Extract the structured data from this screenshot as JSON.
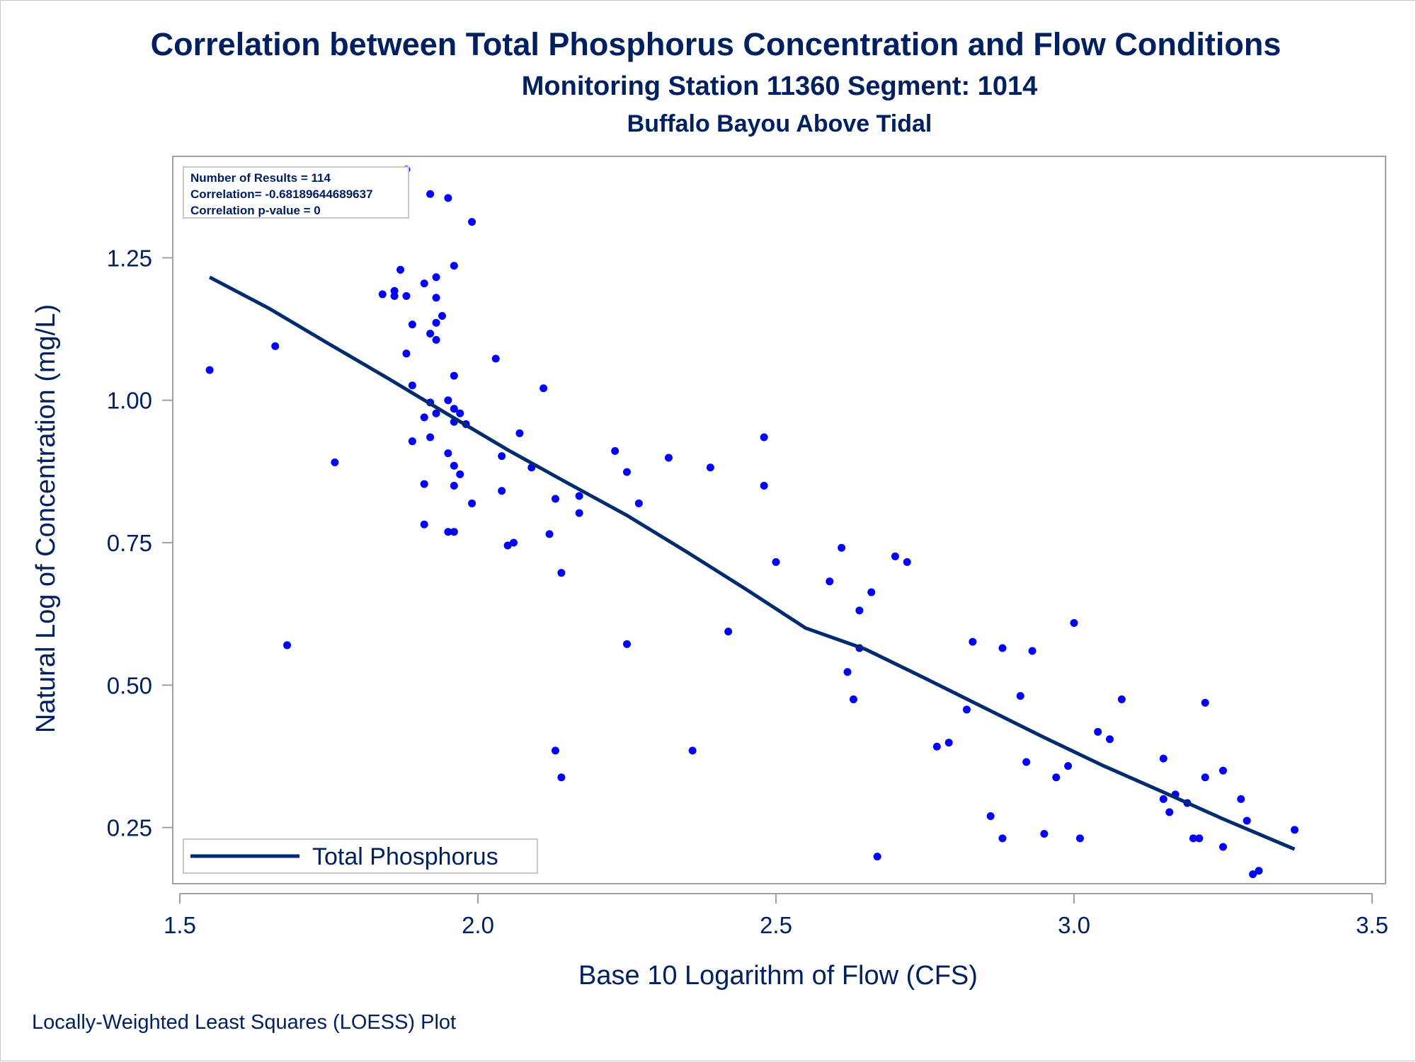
{
  "titles": {
    "title": "Correlation between Total Phosphorus Concentration and Flow Conditions",
    "subtitle": "Monitoring Station 11360 Segment: 1014",
    "subtitle2": "Buffalo Bayou Above Tidal"
  },
  "footnote": "Locally-Weighted Least Squares (LOESS) Plot",
  "stats": [
    "Number of Results = 114",
    "Correlation= -0.68189644689637",
    "Correlation p-value = 0"
  ],
  "colors": {
    "text": "#002060",
    "points": "#0000ff",
    "line": "#002b6e",
    "frame": "#a0a0a0"
  },
  "chart_data": {
    "type": "scatter",
    "xlabel": "Base 10 Logarithm of Flow (CFS)",
    "ylabel": "Natural Log of Concentration (mg/L)",
    "xlim": [
      1.5,
      3.5
    ],
    "ylim": [
      0.16,
      1.42
    ],
    "xticks": [
      1.5,
      2.0,
      2.5,
      3.0,
      3.5
    ],
    "xtick_labels": [
      "1.5",
      "2.0",
      "2.5",
      "3.0",
      "3.5"
    ],
    "yticks": [
      0.25,
      0.5,
      0.75,
      1.0,
      1.25
    ],
    "ytick_labels": [
      "0.25",
      "0.50",
      "0.75",
      "1.00",
      "1.25"
    ],
    "grid": false,
    "legend": {
      "position": "bottom-left",
      "entries": [
        "Total Phosphorus"
      ]
    },
    "points": [
      [
        1.55,
        1.053
      ],
      [
        1.66,
        1.095
      ],
      [
        1.68,
        0.57
      ],
      [
        1.76,
        0.891
      ],
      [
        1.84,
        1.186
      ],
      [
        1.86,
        1.183
      ],
      [
        1.87,
        1.229
      ],
      [
        1.86,
        1.192
      ],
      [
        1.88,
        1.183
      ],
      [
        1.88,
        1.082
      ],
      [
        1.89,
        1.133
      ],
      [
        1.89,
        1.026
      ],
      [
        1.89,
        0.928
      ],
      [
        1.88,
        1.405
      ],
      [
        1.92,
        1.362
      ],
      [
        1.91,
        1.205
      ],
      [
        1.93,
        1.216
      ],
      [
        1.93,
        1.18
      ],
      [
        1.94,
        1.148
      ],
      [
        1.93,
        1.136
      ],
      [
        1.92,
        1.117
      ],
      [
        1.93,
        1.106
      ],
      [
        1.95,
        1.355
      ],
      [
        1.96,
        1.236
      ],
      [
        1.99,
        1.313
      ],
      [
        1.92,
        0.996
      ],
      [
        1.95,
        1.0
      ],
      [
        1.91,
        0.97
      ],
      [
        1.93,
        0.977
      ],
      [
        1.92,
        0.935
      ],
      [
        1.96,
        0.985
      ],
      [
        1.97,
        0.977
      ],
      [
        1.96,
        0.962
      ],
      [
        1.98,
        0.958
      ],
      [
        1.96,
        1.043
      ],
      [
        1.95,
        0.907
      ],
      [
        1.96,
        0.885
      ],
      [
        1.97,
        0.87
      ],
      [
        1.96,
        0.85
      ],
      [
        1.91,
        0.853
      ],
      [
        1.99,
        0.819
      ],
      [
        1.91,
        0.782
      ],
      [
        1.95,
        0.769
      ],
      [
        1.96,
        0.769
      ],
      [
        2.03,
        1.073
      ],
      [
        2.04,
        0.902
      ],
      [
        2.04,
        0.841
      ],
      [
        2.07,
        0.942
      ],
      [
        2.09,
        0.882
      ],
      [
        2.05,
        0.745
      ],
      [
        2.06,
        0.75
      ],
      [
        2.11,
        1.021
      ],
      [
        2.12,
        0.765
      ],
      [
        2.13,
        0.827
      ],
      [
        2.14,
        0.697
      ],
      [
        2.17,
        0.832
      ],
      [
        2.17,
        0.802
      ],
      [
        2.13,
        0.385
      ],
      [
        2.14,
        0.338
      ],
      [
        2.23,
        0.911
      ],
      [
        2.25,
        0.874
      ],
      [
        2.27,
        0.819
      ],
      [
        2.25,
        0.572
      ],
      [
        2.32,
        0.899
      ],
      [
        2.39,
        0.882
      ],
      [
        2.36,
        0.385
      ],
      [
        2.42,
        0.594
      ],
      [
        2.48,
        0.935
      ],
      [
        2.48,
        0.85
      ],
      [
        2.5,
        0.716
      ],
      [
        2.59,
        0.682
      ],
      [
        2.61,
        0.741
      ],
      [
        2.64,
        0.631
      ],
      [
        2.66,
        0.663
      ],
      [
        2.64,
        0.565
      ],
      [
        2.62,
        0.523
      ],
      [
        2.63,
        0.475
      ],
      [
        2.67,
        0.199
      ],
      [
        2.7,
        0.726
      ],
      [
        2.72,
        0.716
      ],
      [
        2.77,
        0.392
      ],
      [
        2.79,
        0.399
      ],
      [
        2.82,
        0.457
      ],
      [
        2.83,
        0.576
      ],
      [
        2.86,
        0.27
      ],
      [
        2.88,
        0.231
      ],
      [
        2.88,
        0.565
      ],
      [
        2.91,
        0.481
      ],
      [
        2.92,
        0.365
      ],
      [
        2.93,
        0.56
      ],
      [
        2.95,
        0.239
      ],
      [
        2.97,
        0.338
      ],
      [
        2.99,
        0.358
      ],
      [
        3.0,
        0.609
      ],
      [
        3.01,
        0.231
      ],
      [
        3.04,
        0.418
      ],
      [
        3.06,
        0.405
      ],
      [
        3.08,
        0.475
      ],
      [
        3.15,
        0.371
      ],
      [
        3.15,
        0.3
      ],
      [
        3.16,
        0.277
      ],
      [
        3.17,
        0.308
      ],
      [
        3.19,
        0.293
      ],
      [
        3.2,
        0.231
      ],
      [
        3.21,
        0.231
      ],
      [
        3.22,
        0.469
      ],
      [
        3.22,
        0.338
      ],
      [
        3.25,
        0.35
      ],
      [
        3.25,
        0.216
      ],
      [
        3.28,
        0.3
      ],
      [
        3.29,
        0.262
      ],
      [
        3.3,
        0.168
      ],
      [
        3.31,
        0.174
      ],
      [
        3.37,
        0.246
      ]
    ],
    "series": [
      {
        "name": "Total Phosphorus",
        "type": "line",
        "x": [
          1.55,
          1.65,
          1.75,
          1.85,
          1.95,
          2.05,
          2.15,
          2.25,
          2.35,
          2.45,
          2.55,
          2.65,
          2.75,
          2.85,
          2.95,
          3.05,
          3.15,
          3.25,
          3.37
        ],
        "y": [
          1.216,
          1.161,
          1.099,
          1.038,
          0.975,
          0.913,
          0.855,
          0.798,
          0.734,
          0.668,
          0.6,
          0.563,
          0.512,
          0.46,
          0.408,
          0.358,
          0.312,
          0.265,
          0.212
        ]
      }
    ]
  }
}
